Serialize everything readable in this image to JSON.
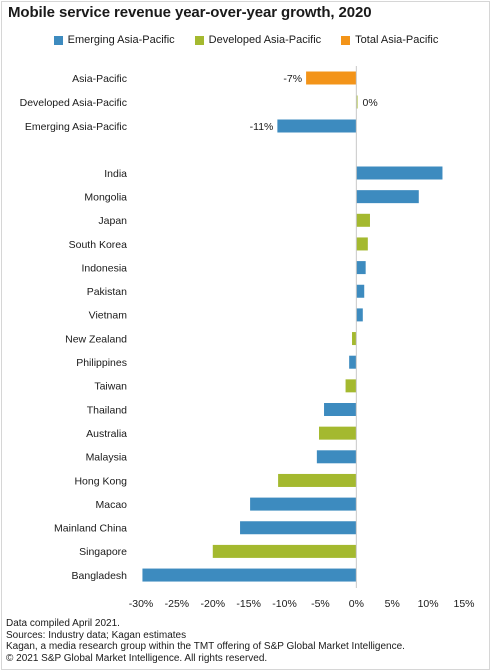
{
  "title": "Mobile service revenue year-over-year growth, 2020",
  "legend": [
    {
      "label": "Emerging Asia-Pacific",
      "color": "#3d8bbf"
    },
    {
      "label": "Developed Asia-Pacific",
      "color": "#a4b92f"
    },
    {
      "label": "Total Asia-Pacific",
      "color": "#f39419"
    }
  ],
  "footer": [
    "Data compiled April 2021.",
    "Sources: Industry data; Kagan estimates",
    "Kagan, a media research group within the TMT offering of S&P Global Market Intelligence.",
    "© 2021 S&P Global Market Intelligence. All rights reserved."
  ],
  "chart_data": {
    "type": "bar",
    "orientation": "horizontal",
    "title": "Mobile service revenue year-over-year growth, 2020",
    "xlabel": "",
    "ylabel": "",
    "xlim": [
      -30,
      15
    ],
    "xticks": [
      "-30%",
      "-25%",
      "-20%",
      "-15%",
      "-10%",
      "-5%",
      "0%",
      "5%",
      "10%",
      "15%"
    ],
    "grid": false,
    "legend_position": "top",
    "series": [
      {
        "name": "Emerging Asia-Pacific",
        "color": "#3d8bbf"
      },
      {
        "name": "Developed Asia-Pacific",
        "color": "#a4b92f"
      },
      {
        "name": "Total Asia-Pacific",
        "color": "#f39419"
      }
    ],
    "groups": [
      {
        "bars": [
          {
            "category": "Asia-Pacific",
            "value": -7,
            "series": "Total Asia-Pacific",
            "label": "-7%"
          },
          {
            "category": "Developed Asia-Pacific",
            "value": 0.1,
            "series": "Developed Asia-Pacific",
            "label": "0%"
          },
          {
            "category": "Emerging Asia-Pacific",
            "value": -11,
            "series": "Emerging Asia-Pacific",
            "label": "-11%"
          }
        ]
      },
      {
        "bars": [
          {
            "category": "India",
            "value": 12,
            "series": "Emerging Asia-Pacific"
          },
          {
            "category": "Mongolia",
            "value": 8.7,
            "series": "Emerging Asia-Pacific"
          },
          {
            "category": "Japan",
            "value": 1.9,
            "series": "Developed Asia-Pacific"
          },
          {
            "category": "South Korea",
            "value": 1.6,
            "series": "Developed Asia-Pacific"
          },
          {
            "category": "Indonesia",
            "value": 1.3,
            "series": "Emerging Asia-Pacific"
          },
          {
            "category": "Pakistan",
            "value": 1.1,
            "series": "Emerging Asia-Pacific"
          },
          {
            "category": "Vietnam",
            "value": 0.9,
            "series": "Emerging Asia-Pacific"
          },
          {
            "category": "New Zealand",
            "value": -0.6,
            "series": "Developed Asia-Pacific"
          },
          {
            "category": "Philippines",
            "value": -1.0,
            "series": "Emerging Asia-Pacific"
          },
          {
            "category": "Taiwan",
            "value": -1.5,
            "series": "Developed Asia-Pacific"
          },
          {
            "category": "Thailand",
            "value": -4.5,
            "series": "Emerging Asia-Pacific"
          },
          {
            "category": "Australia",
            "value": -5.2,
            "series": "Developed Asia-Pacific"
          },
          {
            "category": "Malaysia",
            "value": -5.5,
            "series": "Emerging Asia-Pacific"
          },
          {
            "category": "Hong Kong",
            "value": -10.9,
            "series": "Developed Asia-Pacific"
          },
          {
            "category": "Macao",
            "value": -14.8,
            "series": "Emerging Asia-Pacific"
          },
          {
            "category": "Mainland China",
            "value": -16.2,
            "series": "Emerging Asia-Pacific"
          },
          {
            "category": "Singapore",
            "value": -20.0,
            "series": "Developed Asia-Pacific"
          },
          {
            "category": "Bangladesh",
            "value": -29.8,
            "series": "Emerging Asia-Pacific"
          }
        ]
      }
    ]
  }
}
